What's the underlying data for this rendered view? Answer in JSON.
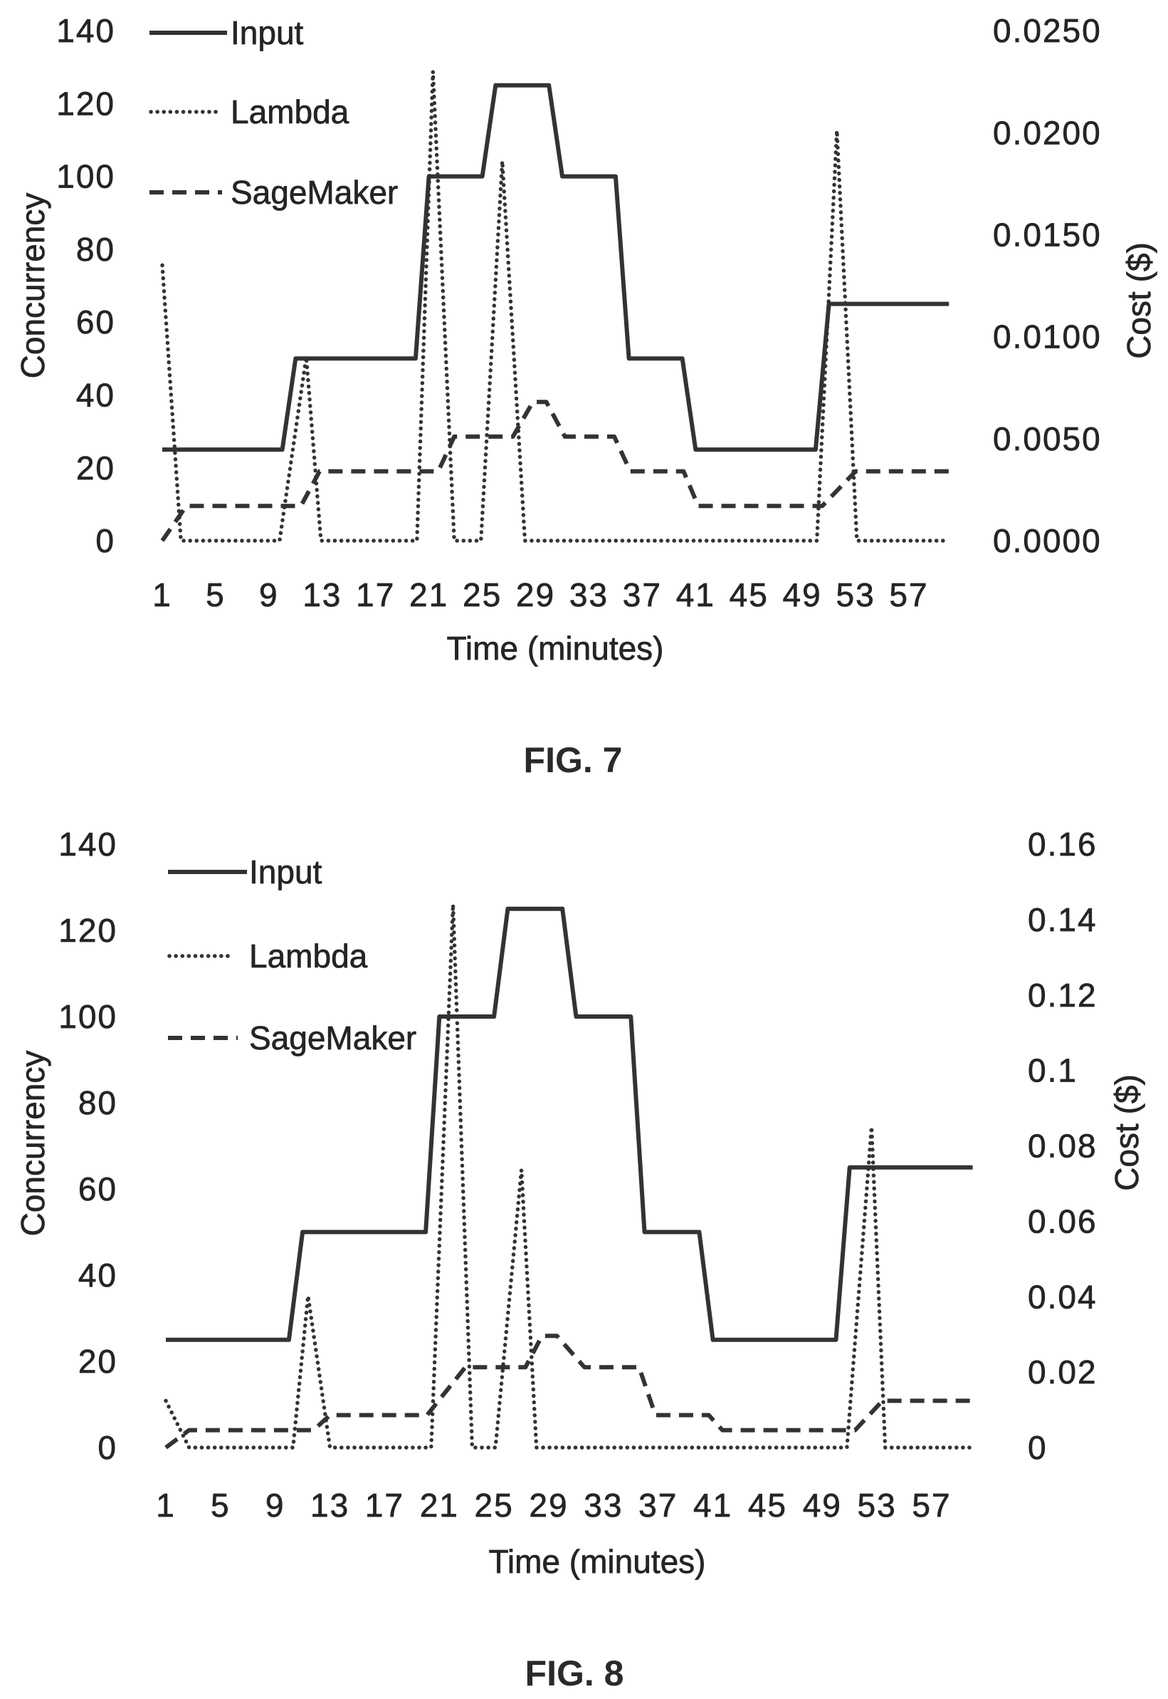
{
  "chart_data": [
    {
      "type": "line",
      "caption": "FIG. 7",
      "xlabel": "Time (minutes)",
      "ylabel": "Concurrency",
      "y2label": "Cost ($)",
      "x_ticks": [
        "1",
        "5",
        "9",
        "13",
        "17",
        "21",
        "25",
        "29",
        "33",
        "37",
        "41",
        "45",
        "49",
        "53",
        "57"
      ],
      "y_ticks": [
        "0",
        "20",
        "40",
        "60",
        "80",
        "100",
        "120",
        "140"
      ],
      "y2_ticks": [
        "0.0000",
        "0.0050",
        "0.0100",
        "0.0150",
        "0.0200",
        "0.0250"
      ],
      "xlim": [
        1,
        60
      ],
      "ylim": [
        0,
        140
      ],
      "y2lim": [
        0,
        0.025
      ],
      "grid": false,
      "legend": "top-left",
      "series": [
        {
          "name": "Input",
          "axis": "left",
          "line_style": "solid",
          "color": "#333333",
          "points": [
            [
              1,
              25
            ],
            [
              10,
              25
            ],
            [
              11,
              50
            ],
            [
              20,
              50
            ],
            [
              21,
              100
            ],
            [
              25,
              100
            ],
            [
              26,
              125
            ],
            [
              30,
              125
            ],
            [
              31,
              100
            ],
            [
              35,
              100
            ],
            [
              36,
              50
            ],
            [
              40,
              50
            ],
            [
              41,
              25
            ],
            [
              50,
              25
            ],
            [
              51,
              65
            ],
            [
              60,
              65
            ]
          ]
        },
        {
          "name": "Lambda",
          "axis": "right",
          "line_style": "dotted",
          "color": "#333333",
          "points": [
            [
              1,
              0.0135
            ],
            [
              2.4,
              0
            ],
            [
              9.8,
              0
            ],
            [
              11.8,
              0.009
            ],
            [
              12.9,
              0
            ],
            [
              20.1,
              0
            ],
            [
              21.3,
              0.023
            ],
            [
              22.9,
              0
            ],
            [
              24.9,
              0
            ],
            [
              26.5,
              0.0186
            ],
            [
              28.2,
              0
            ],
            [
              50.1,
              0
            ],
            [
              51.6,
              0.0201
            ],
            [
              53.1,
              0
            ],
            [
              60,
              0
            ]
          ]
        },
        {
          "name": "SageMaker",
          "axis": "right",
          "line_style": "dashed",
          "color": "#333333",
          "points": [
            [
              1,
              0
            ],
            [
              2.8,
              0.0017
            ],
            [
              11.4,
              0.0017
            ],
            [
              12.8,
              0.0034
            ],
            [
              21.7,
              0.0034
            ],
            [
              22.9,
              0.0051
            ],
            [
              27.3,
              0.0051
            ],
            [
              28.8,
              0.0068
            ],
            [
              29.8,
              0.0068
            ],
            [
              31.2,
              0.0051
            ],
            [
              34.9,
              0.0051
            ],
            [
              36.1,
              0.0034
            ],
            [
              40.1,
              0.0034
            ],
            [
              41.2,
              0.0017
            ],
            [
              50.5,
              0.0017
            ],
            [
              53,
              0.0034
            ],
            [
              60,
              0.0034
            ]
          ]
        }
      ]
    },
    {
      "type": "line",
      "caption": "FIG. 8",
      "xlabel": "Time (minutes)",
      "ylabel": "Concurrency",
      "y2label": "Cost ($)",
      "x_ticks": [
        "1",
        "5",
        "9",
        "13",
        "17",
        "21",
        "25",
        "29",
        "33",
        "37",
        "41",
        "45",
        "49",
        "53",
        "57"
      ],
      "y_ticks": [
        "0",
        "20",
        "40",
        "60",
        "80",
        "100",
        "120",
        "140"
      ],
      "y2_ticks": [
        "0",
        "0.02",
        "0.04",
        "0.06",
        "0.08",
        "0.1",
        "0.12",
        "0.14",
        "0.16"
      ],
      "xlim": [
        1,
        60
      ],
      "ylim": [
        0,
        140
      ],
      "y2lim": [
        0,
        0.16
      ],
      "grid": false,
      "legend": "top-left",
      "series": [
        {
          "name": "Input",
          "axis": "left",
          "line_style": "solid",
          "color": "#333333",
          "points": [
            [
              1,
              25
            ],
            [
              10,
              25
            ],
            [
              11,
              50
            ],
            [
              20,
              50
            ],
            [
              21,
              100
            ],
            [
              25,
              100
            ],
            [
              26,
              125
            ],
            [
              30,
              125
            ],
            [
              31,
              100
            ],
            [
              35,
              100
            ],
            [
              36,
              50
            ],
            [
              40,
              50
            ],
            [
              41,
              25
            ],
            [
              50,
              25
            ],
            [
              51,
              65
            ],
            [
              60,
              65
            ]
          ]
        },
        {
          "name": "Lambda",
          "axis": "right",
          "line_style": "dotted",
          "color": "#333333",
          "points": [
            [
              1,
              0.0124
            ],
            [
              2.7,
              0
            ],
            [
              10.3,
              0
            ],
            [
              11.4,
              0.0402
            ],
            [
              13,
              0
            ],
            [
              20.4,
              0
            ],
            [
              22,
              0.144
            ],
            [
              23.4,
              0
            ],
            [
              25.1,
              0
            ],
            [
              27,
              0.0736
            ],
            [
              28.1,
              0
            ],
            [
              50.8,
              0
            ],
            [
              52.6,
              0.085
            ],
            [
              53.6,
              0
            ],
            [
              60,
              0
            ]
          ]
        },
        {
          "name": "SageMaker",
          "axis": "right",
          "line_style": "dashed",
          "color": "#333333",
          "points": [
            [
              1,
              0
            ],
            [
              2.7,
              0.0046
            ],
            [
              11.8,
              0.0046
            ],
            [
              13,
              0.0086
            ],
            [
              20.1,
              0.0086
            ],
            [
              22.9,
              0.0213
            ],
            [
              27.3,
              0.0213
            ],
            [
              28.5,
              0.0296
            ],
            [
              29.6,
              0.0296
            ],
            [
              31.6,
              0.0213
            ],
            [
              35.6,
              0.0213
            ],
            [
              36.8,
              0.0086
            ],
            [
              40.7,
              0.0086
            ],
            [
              41.7,
              0.0046
            ],
            [
              51.4,
              0.0046
            ],
            [
              53.4,
              0.0124
            ],
            [
              60,
              0.0124
            ]
          ]
        }
      ]
    }
  ]
}
